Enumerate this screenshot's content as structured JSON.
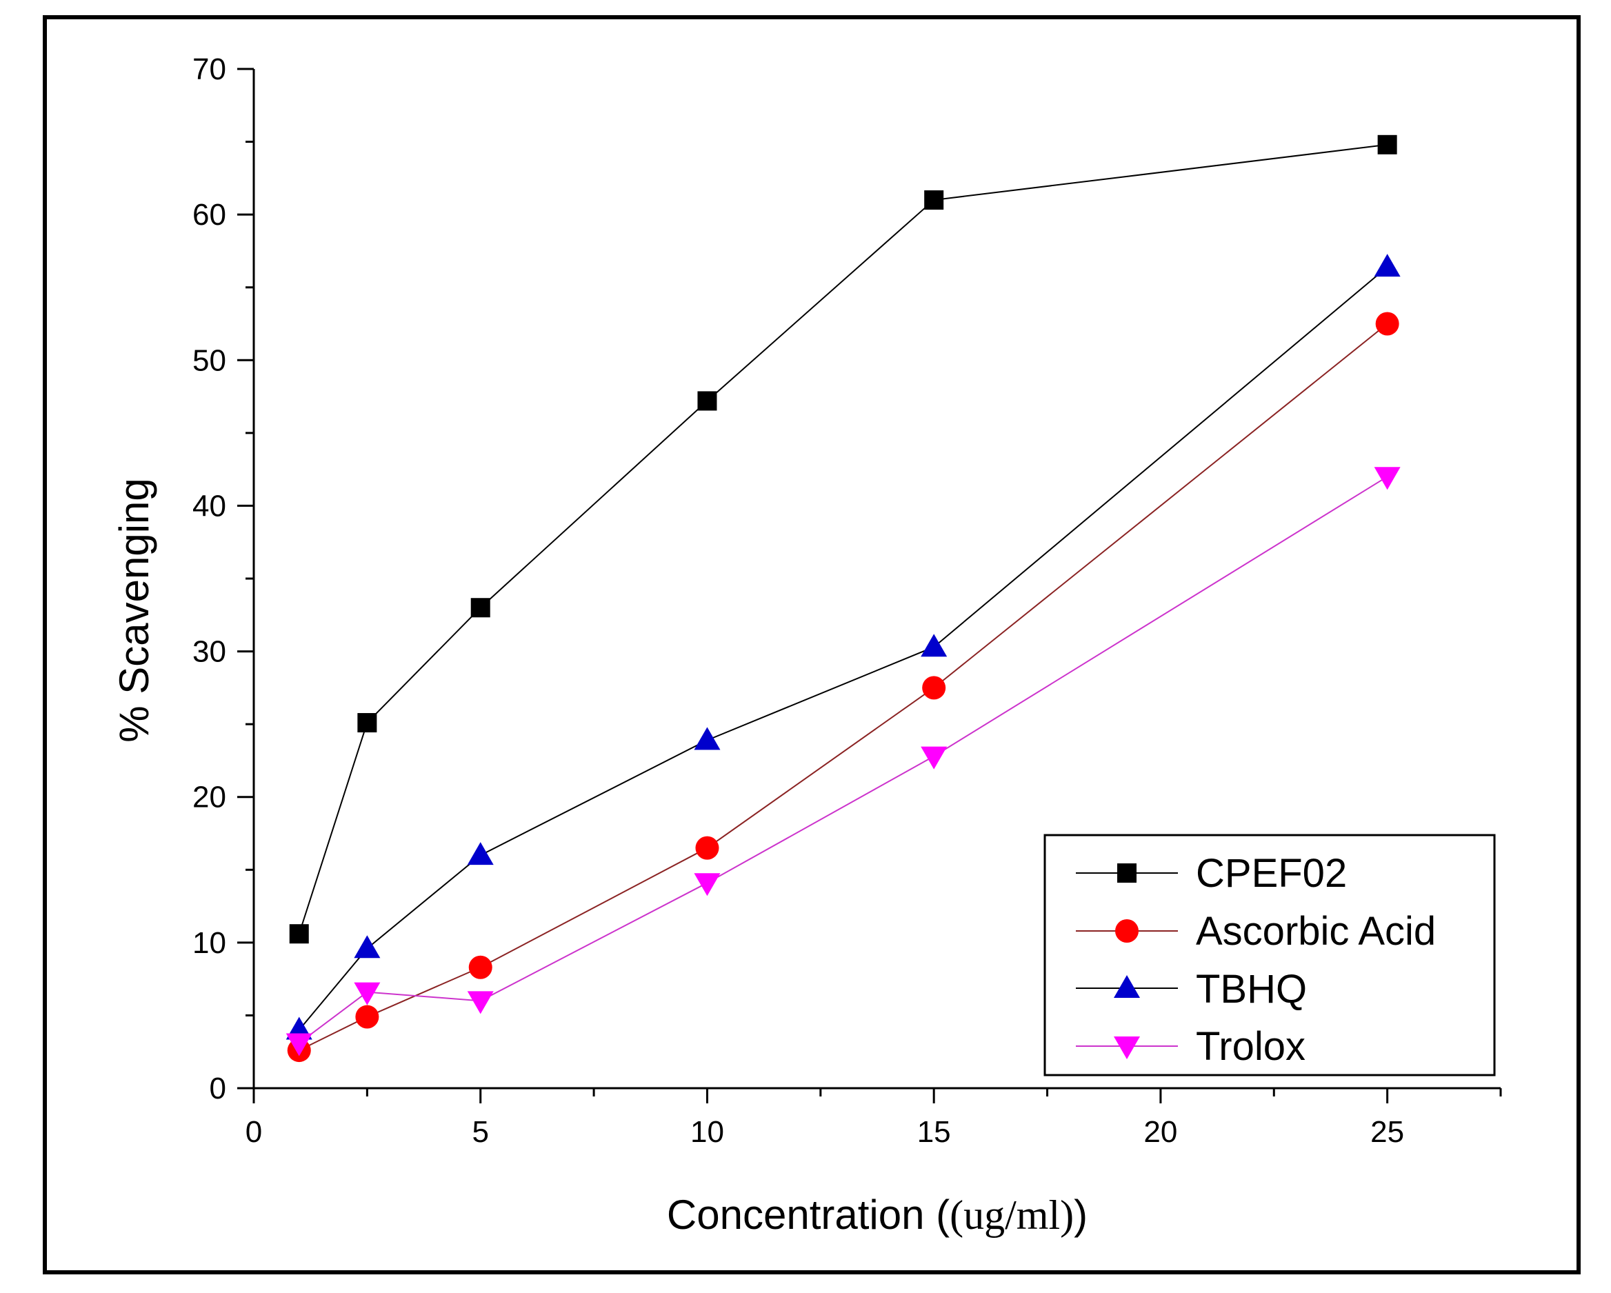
{
  "chart_data": {
    "type": "line",
    "title": "",
    "xlabel_prefix": "Concentration (",
    "xlabel_unit": "(ug/ml)",
    "xlabel_suffix": ")",
    "ylabel": "% Scavenging",
    "xlim": [
      0,
      27.5
    ],
    "ylim": [
      0,
      70
    ],
    "xticks": [
      0,
      5,
      10,
      15,
      20,
      25
    ],
    "xminor": [
      2.5,
      7.5,
      12.5,
      17.5,
      22.5,
      27.5
    ],
    "yticks": [
      0,
      10,
      20,
      30,
      40,
      50,
      60,
      70
    ],
    "yminor": [
      5,
      15,
      25,
      35,
      45,
      55,
      65
    ],
    "legend_position": "bottom-right",
    "x": [
      1,
      2.5,
      5,
      10,
      15,
      25
    ],
    "series": [
      {
        "name": "CPEF02",
        "marker": "square",
        "color": "#000000",
        "line_color": "#000000",
        "values": [
          10.6,
          25.1,
          33.0,
          47.2,
          61.0,
          64.8
        ]
      },
      {
        "name": "Ascorbic Acid",
        "marker": "circle",
        "color": "#ff0000",
        "line_color": "#8b2323",
        "values": [
          2.6,
          4.9,
          8.3,
          16.5,
          27.5,
          52.5
        ]
      },
      {
        "name": "TBHQ",
        "marker": "triangle-up",
        "color": "#0000cc",
        "line_color": "#000000",
        "values": [
          4.0,
          9.6,
          16.0,
          23.9,
          30.3,
          56.4
        ]
      },
      {
        "name": "Trolox",
        "marker": "triangle-down",
        "color": "#ff00ff",
        "line_color": "#cc33cc",
        "values": [
          3.1,
          6.6,
          6.0,
          14.1,
          22.8,
          42.0
        ]
      }
    ]
  }
}
